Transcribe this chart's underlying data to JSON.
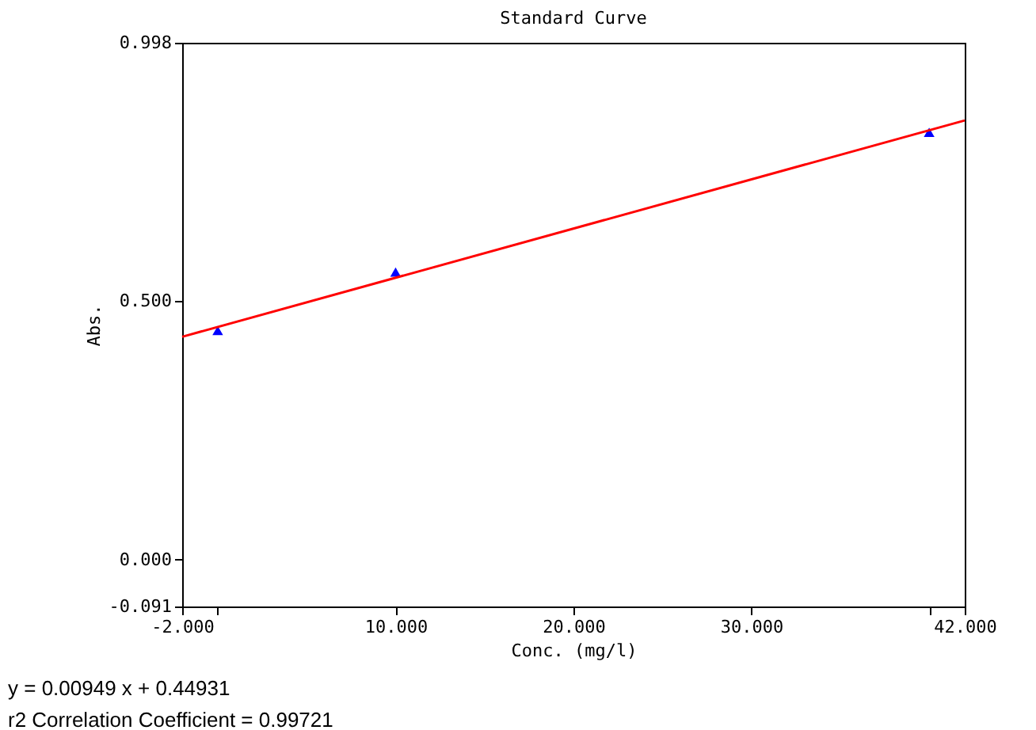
{
  "chart_data": {
    "type": "scatter",
    "title": "Standard Curve",
    "xlabel": "Conc. (mg/l)",
    "ylabel": "Abs.",
    "x": [
      0,
      10,
      40
    ],
    "series": [
      {
        "color": "#0000ff",
        "values": [
          0.442,
          0.555,
          0.825
        ],
        "marker": "triangle"
      },
      {
        "type": "line",
        "color": "#ff0000",
        "x": [
          -2,
          42
        ],
        "values": [
          0.43,
          0.848
        ],
        "marker": "none",
        "line_style": "solid"
      }
    ],
    "xlim": [
      -2,
      42
    ],
    "xticks": [
      {
        "value": -2,
        "label": "-2.000"
      },
      {
        "value": 0,
        "label": null
      },
      {
        "value": 10,
        "label": "10.000"
      },
      {
        "value": 20,
        "label": "20.000"
      },
      {
        "value": 30,
        "label": "30.000"
      },
      {
        "value": 40,
        "label": null
      },
      {
        "value": 42,
        "label": "42.000"
      }
    ],
    "ylim": [
      -0.091,
      0.998
    ],
    "yticks": [
      {
        "value": -0.091,
        "label": "-0.091"
      },
      {
        "value": 0,
        "label": "0.000"
      },
      {
        "value": 0.5,
        "label": "0.500"
      },
      {
        "value": 0.998,
        "label": "0.998"
      }
    ],
    "grid": false,
    "annotations": [
      "y = 0.00949 x + 0.44931",
      "r2 Correlation Coefficient = 0.99721"
    ]
  }
}
